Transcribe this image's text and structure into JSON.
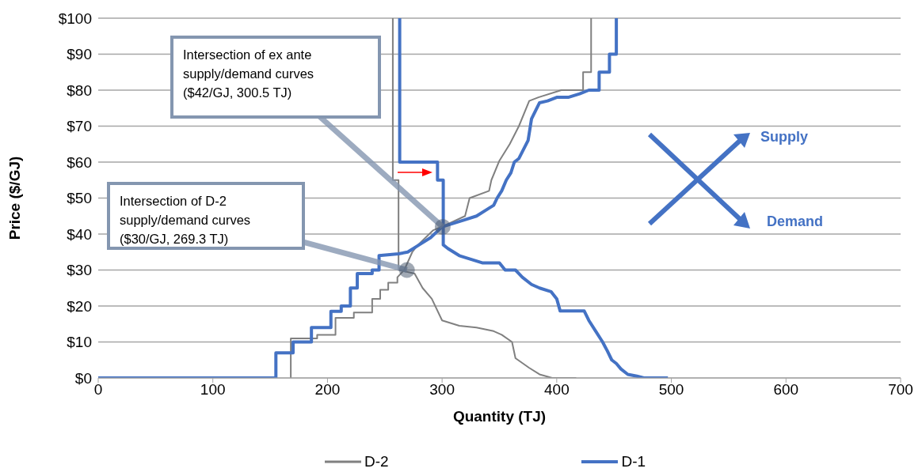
{
  "chart_data": {
    "type": "line",
    "xlabel": "Quantity (TJ)",
    "ylabel": "Price ($/GJ)",
    "xlim": [
      0,
      700
    ],
    "xticks": [
      0,
      100,
      200,
      300,
      400,
      500,
      600,
      700
    ],
    "ylim": [
      0,
      100
    ],
    "yticks": [
      {
        "value": 0,
        "label": "$0"
      },
      {
        "value": 10,
        "label": "$10"
      },
      {
        "value": 20,
        "label": "$20"
      },
      {
        "value": 30,
        "label": "$30"
      },
      {
        "value": 40,
        "label": "$40"
      },
      {
        "value": 50,
        "label": "$50"
      },
      {
        "value": 60,
        "label": "$60"
      },
      {
        "value": 70,
        "label": "$70"
      },
      {
        "value": 80,
        "label": "$80"
      },
      {
        "value": 90,
        "label": "$90"
      },
      {
        "value": 100,
        "label": "$100"
      }
    ],
    "grid": "y",
    "legend": "bottom",
    "marker": "none",
    "line_style": "solid",
    "series": [
      {
        "name": "D-2",
        "color": "#808080",
        "x": [
          168,
          168,
          191,
          191,
          207,
          207,
          223,
          223,
          239,
          239,
          246,
          246,
          253,
          253,
          261,
          261,
          267,
          274,
          279,
          292,
          303,
          320,
          324,
          341,
          343,
          350,
          359,
          367,
          376,
          384,
          404,
          423,
          423,
          430,
          430
        ],
        "values": [
          0,
          11,
          11,
          12,
          12,
          16.7,
          16.7,
          18.2,
          18.2,
          22,
          22,
          24.5,
          24.5,
          26.5,
          26.5,
          28,
          30,
          35,
          37,
          41,
          42.5,
          45,
          50,
          52,
          55,
          60.4,
          65,
          70,
          77,
          78,
          80,
          80,
          85,
          85,
          100
        ]
      },
      {
        "color": "#808080",
        "x": [
          257,
          257,
          262,
          262,
          276,
          283,
          291,
          300,
          315,
          330,
          345,
          352,
          361,
          364,
          376,
          385,
          396,
          417
        ],
        "values": [
          100,
          55,
          55,
          30,
          29,
          25,
          22,
          16,
          14.5,
          14,
          13,
          12,
          10,
          5.5,
          2.8,
          1,
          0,
          0
        ]
      },
      {
        "name": "D-1",
        "color": "#4472c4",
        "x": [
          0,
          155,
          155,
          170,
          170,
          186,
          186,
          203,
          203,
          212,
          212,
          220,
          220,
          226,
          226,
          239,
          239,
          245,
          245,
          262,
          270,
          280,
          290,
          300,
          310,
          320,
          330,
          340,
          345,
          348,
          352,
          356,
          360,
          363,
          367,
          375,
          378,
          385,
          392,
          400,
          410,
          420,
          428,
          437,
          437,
          446,
          446,
          452,
          452
        ],
        "values": [
          0,
          0,
          7,
          7,
          10,
          10,
          14,
          14,
          18.5,
          18.5,
          20,
          20,
          25,
          25,
          29,
          29,
          30,
          30,
          34,
          34.5,
          35,
          37,
          39,
          42,
          43,
          44,
          45,
          47,
          48,
          50,
          52,
          55,
          57,
          60,
          61,
          66,
          72,
          76.5,
          77,
          78,
          78,
          79,
          80,
          80,
          85,
          85,
          90,
          90,
          100
        ]
      },
      {
        "color": "#4472c4",
        "x": [
          263,
          263,
          296,
          296,
          301,
          301,
          305,
          315,
          325,
          335,
          350,
          355,
          364,
          370,
          378,
          385,
          395,
          400,
          403,
          424,
          428,
          434,
          440,
          444,
          448,
          452,
          456,
          462,
          470,
          476,
          497
        ],
        "values": [
          100,
          60,
          60,
          55,
          55,
          37,
          36,
          34,
          33,
          32,
          32,
          30,
          30,
          28,
          26,
          25,
          24,
          22,
          18.6,
          18.6,
          16,
          13,
          10,
          7.6,
          5,
          4,
          2.5,
          1,
          0.5,
          0,
          0
        ]
      }
    ],
    "annotations": [
      {
        "text": "Intersection of ex ante supply/demand curves ($42/GJ, 300.5 TJ)",
        "x": 300.5,
        "y": 42
      },
      {
        "text": "Intersection of D-2 supply/demand curves ($30/GJ, 269.3 TJ)",
        "x": 269.3,
        "y": 30
      },
      "Supply",
      "Demand"
    ]
  }
}
